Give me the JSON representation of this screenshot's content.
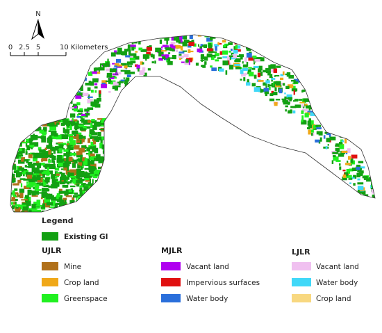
{
  "north": "N",
  "scale_bar": {
    "labels": [
      "0",
      "2.5",
      "5",
      "10 Kilometers"
    ]
  },
  "legend": {
    "title": "Legend",
    "existing": "Existing GI",
    "groups": [
      {
        "title": "UJLR",
        "items": [
          "Mine",
          "Crop land",
          "Greenspace"
        ]
      },
      {
        "title": "MJLR",
        "items": [
          "Vacant land",
          "Impervious surfaces",
          "Water body"
        ]
      },
      {
        "title": "LJLR",
        "items": [
          "Vacant land",
          "Water body",
          "Crop land"
        ]
      }
    ]
  }
}
